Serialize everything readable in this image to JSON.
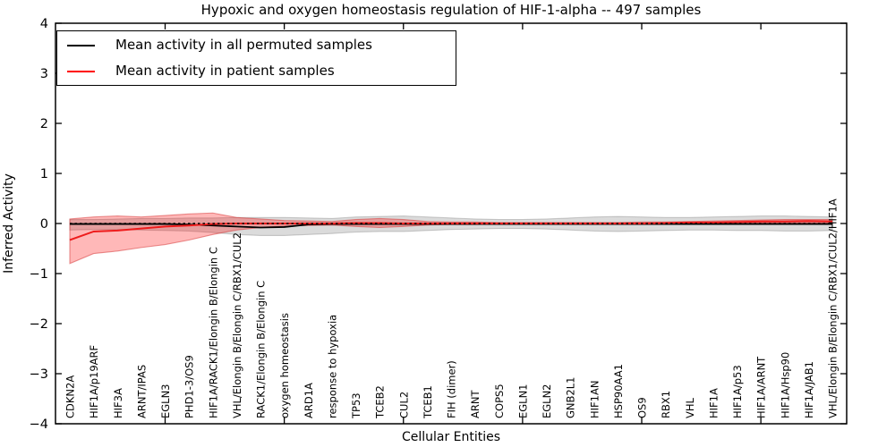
{
  "title": "Hypoxic and oxygen homeostasis regulation of HIF-1-alpha -- 497 samples",
  "legend": [
    {
      "label": "Mean activity in all permuted samples",
      "color": "#000000"
    },
    {
      "label": "Mean activity in patient samples",
      "color": "#ff0000"
    }
  ],
  "axes": {
    "x_label": "Cellular Entities",
    "y_label": "Inferred Activity",
    "y_ticks": [
      -4,
      -3,
      -2,
      -1,
      0,
      1,
      2,
      3,
      4
    ],
    "y_min": -4,
    "y_max": 4,
    "x_major_tick_entities": [
      5,
      10,
      15,
      20,
      25,
      30
    ]
  },
  "colors": {
    "permuted_line": "#000000",
    "patient_line": "#ee1c1c",
    "permuted_band_fill": "rgba(0,0,0,0.14)",
    "permuted_band_edge": "rgba(120,120,120,0.35)",
    "patient_band_fill": "rgba(255,0,0,0.28)",
    "patient_band_edge": "rgba(215,60,60,0.55)",
    "zero_line": "#000000",
    "frame": "#000000"
  },
  "chart_data": {
    "type": "line",
    "title": "Hypoxic and oxygen homeostasis regulation of HIF-1-alpha -- 497 samples",
    "xlabel": "Cellular Entities",
    "ylabel": "Inferred Activity",
    "ylim": [
      -4,
      4
    ],
    "grid": false,
    "legend_position": "upper left",
    "categories": [
      "CDKN2A",
      "HIF1A/p19ARF",
      "HIF3A",
      "ARNT/IPAS",
      "EGLN3",
      "PHD1-3/OS9",
      "HIF1A/RACK1/Elongin B/Elongin C",
      "VHL/Elongin B/Elongin C/RBX1/CUL2",
      "RACK1/Elongin B/Elongin C",
      "oxygen homeostasis",
      "ARD1A",
      "response to hypoxia",
      "TP53",
      "TCEB2",
      "CUL2",
      "TCEB1",
      "FIH (dimer)",
      "ARNT",
      "COPS5",
      "EGLN1",
      "EGLN2",
      "GNB2L1",
      "HIF1AN",
      "HSP90AA1",
      "OS9",
      "RBX1",
      "VHL",
      "HIF1A",
      "HIF1A/p53",
      "HIF1A/ARNT",
      "HIF1A/Hsp90",
      "HIF1A/JAB1",
      "VHL/Elongin B/Elongin C/RBX1/CUL2/HIF1A"
    ],
    "series": [
      {
        "name": "Mean activity in all permuted samples",
        "values": [
          -0.01,
          -0.01,
          -0.01,
          -0.01,
          -0.01,
          -0.02,
          -0.04,
          -0.06,
          -0.08,
          -0.07,
          -0.02,
          -0.01,
          -0.01,
          -0.01,
          -0.01,
          -0.01,
          -0.01,
          -0.01,
          -0.01,
          -0.01,
          -0.01,
          -0.01,
          -0.01,
          -0.01,
          -0.01,
          -0.01,
          -0.01,
          -0.01,
          -0.01,
          -0.01,
          -0.01,
          -0.01,
          -0.01
        ],
        "band_upper": [
          0.08,
          0.08,
          0.09,
          0.1,
          0.1,
          0.11,
          0.11,
          0.12,
          0.12,
          0.12,
          0.11,
          0.1,
          0.13,
          0.14,
          0.15,
          0.13,
          0.11,
          0.09,
          0.08,
          0.08,
          0.09,
          0.11,
          0.13,
          0.14,
          0.13,
          0.12,
          0.12,
          0.13,
          0.14,
          0.15,
          0.15,
          0.14,
          0.13
        ],
        "band_lower": [
          -0.13,
          -0.12,
          -0.12,
          -0.13,
          -0.14,
          -0.15,
          -0.18,
          -0.22,
          -0.24,
          -0.24,
          -0.22,
          -0.2,
          -0.17,
          -0.16,
          -0.16,
          -0.14,
          -0.12,
          -0.11,
          -0.1,
          -0.1,
          -0.11,
          -0.13,
          -0.15,
          -0.16,
          -0.15,
          -0.14,
          -0.13,
          -0.13,
          -0.14,
          -0.14,
          -0.15,
          -0.15,
          -0.14
        ]
      },
      {
        "name": "Mean activity in patient samples",
        "values": [
          -0.33,
          -0.16,
          -0.14,
          -0.1,
          -0.06,
          -0.04,
          -0.01,
          0.0,
          0.0,
          0.0,
          0.0,
          0.0,
          0.01,
          0.01,
          0.0,
          0.0,
          0.0,
          0.0,
          0.0,
          0.0,
          0.0,
          0.0,
          0.0,
          0.0,
          0.0,
          0.01,
          0.02,
          0.02,
          0.03,
          0.04,
          0.04,
          0.05,
          0.04
        ],
        "band_upper": [
          0.09,
          0.13,
          0.15,
          0.13,
          0.16,
          0.19,
          0.21,
          0.12,
          0.09,
          0.06,
          0.05,
          0.04,
          0.08,
          0.1,
          0.08,
          0.04,
          0.03,
          0.03,
          0.02,
          0.02,
          0.02,
          0.02,
          0.02,
          0.02,
          0.03,
          0.03,
          0.04,
          0.05,
          0.06,
          0.07,
          0.08,
          0.08,
          0.08
        ],
        "band_lower": [
          -0.8,
          -0.6,
          -0.55,
          -0.48,
          -0.42,
          -0.33,
          -0.22,
          -0.13,
          -0.08,
          -0.05,
          -0.04,
          -0.03,
          -0.06,
          -0.08,
          -0.06,
          -0.03,
          -0.02,
          -0.02,
          -0.01,
          -0.01,
          -0.01,
          -0.01,
          -0.01,
          -0.01,
          0.0,
          0.0,
          0.0,
          0.0,
          0.0,
          0.01,
          0.01,
          0.01,
          0.01
        ]
      }
    ],
    "zero_reference_line": 0
  }
}
